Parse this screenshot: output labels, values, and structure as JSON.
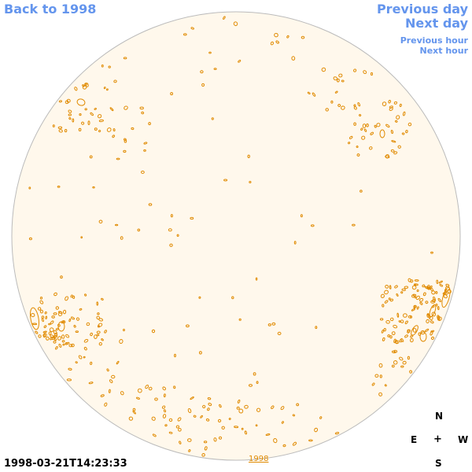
{
  "nav": {
    "back_label": "Back to 1998",
    "prev_day_label": "Previous day",
    "next_day_label": "Next day",
    "prev_hour_label": "Previous hour",
    "next_hour_label": "Next hour"
  },
  "image": {
    "timestamp": "1998-03-21T14:23:33",
    "year_link": "1998"
  },
  "compass": {
    "north": "N",
    "east": "E",
    "center": "+",
    "west": "W",
    "south": "S"
  },
  "colors": {
    "link": "#6495ED",
    "disk_fill": "#FFF8EC",
    "disk_outline": "#BBBBBB",
    "contour": "#E08A00"
  }
}
